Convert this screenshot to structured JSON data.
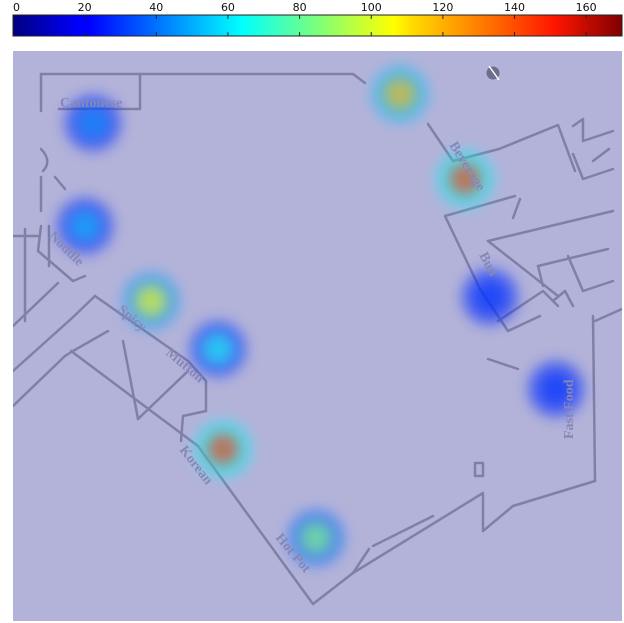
{
  "colorbar": {
    "min": 0,
    "max": 170,
    "ticks": [
      "0",
      "20",
      "40",
      "60",
      "80",
      "100",
      "120",
      "140",
      "160"
    ],
    "tick_values": [
      0,
      20,
      40,
      60,
      80,
      100,
      120,
      140,
      160
    ],
    "colormap": "jet"
  },
  "map": {
    "background_color": "#b3b3d9",
    "wall_color": "#8080a6",
    "label_color": "#8787b6",
    "stalls": [
      {
        "label": "Cantonese",
        "intensity": 45
      },
      {
        "label": "Noddle",
        "intensity": 52
      },
      {
        "label": "Spicy",
        "intensity": 105
      },
      {
        "label": "Mutton",
        "intensity": 65
      },
      {
        "label": "Korean",
        "intensity": 140
      },
      {
        "label": "Hot Pot",
        "intensity": 85
      },
      {
        "label": "Beverage",
        "intensity": 140
      },
      {
        "label": "Bun",
        "intensity": 30
      },
      {
        "label": "Fast Food",
        "intensity": 30
      },
      {
        "label": "",
        "intensity": 118
      }
    ]
  }
}
